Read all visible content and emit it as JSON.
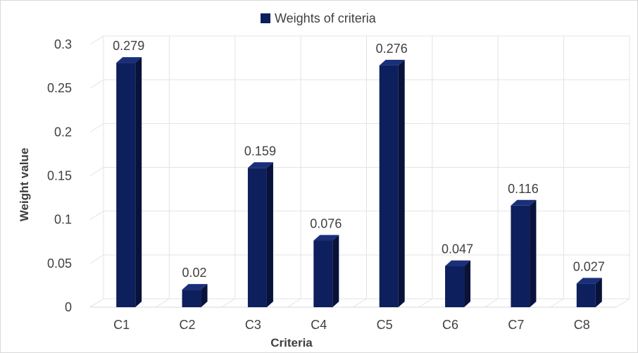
{
  "chart_data": {
    "type": "bar",
    "categories": [
      "C1",
      "C2",
      "C3",
      "C4",
      "C5",
      "C6",
      "C7",
      "C8"
    ],
    "series": [
      {
        "name": "Weights of  criteria",
        "values": [
          0.279,
          0.02,
          0.159,
          0.076,
          0.276,
          0.047,
          0.116,
          0.027
        ]
      }
    ],
    "data_labels": [
      "0.279",
      "0.02",
      "0.159",
      "0.076",
      "0.276",
      "0.047",
      "0.116",
      "0.027"
    ],
    "yticks": [
      "0",
      "0.05",
      "0.1",
      "0.15",
      "0.2",
      "0.25",
      "0.3"
    ],
    "ylim": [
      0,
      0.3
    ],
    "xlabel": "Criteria",
    "ylabel": "Weight value",
    "grid": true,
    "legend_position": "top",
    "bar_color": "#0d1f5c",
    "bar_side_color": "#08123a",
    "bar_top_color": "#1a2f7a"
  }
}
